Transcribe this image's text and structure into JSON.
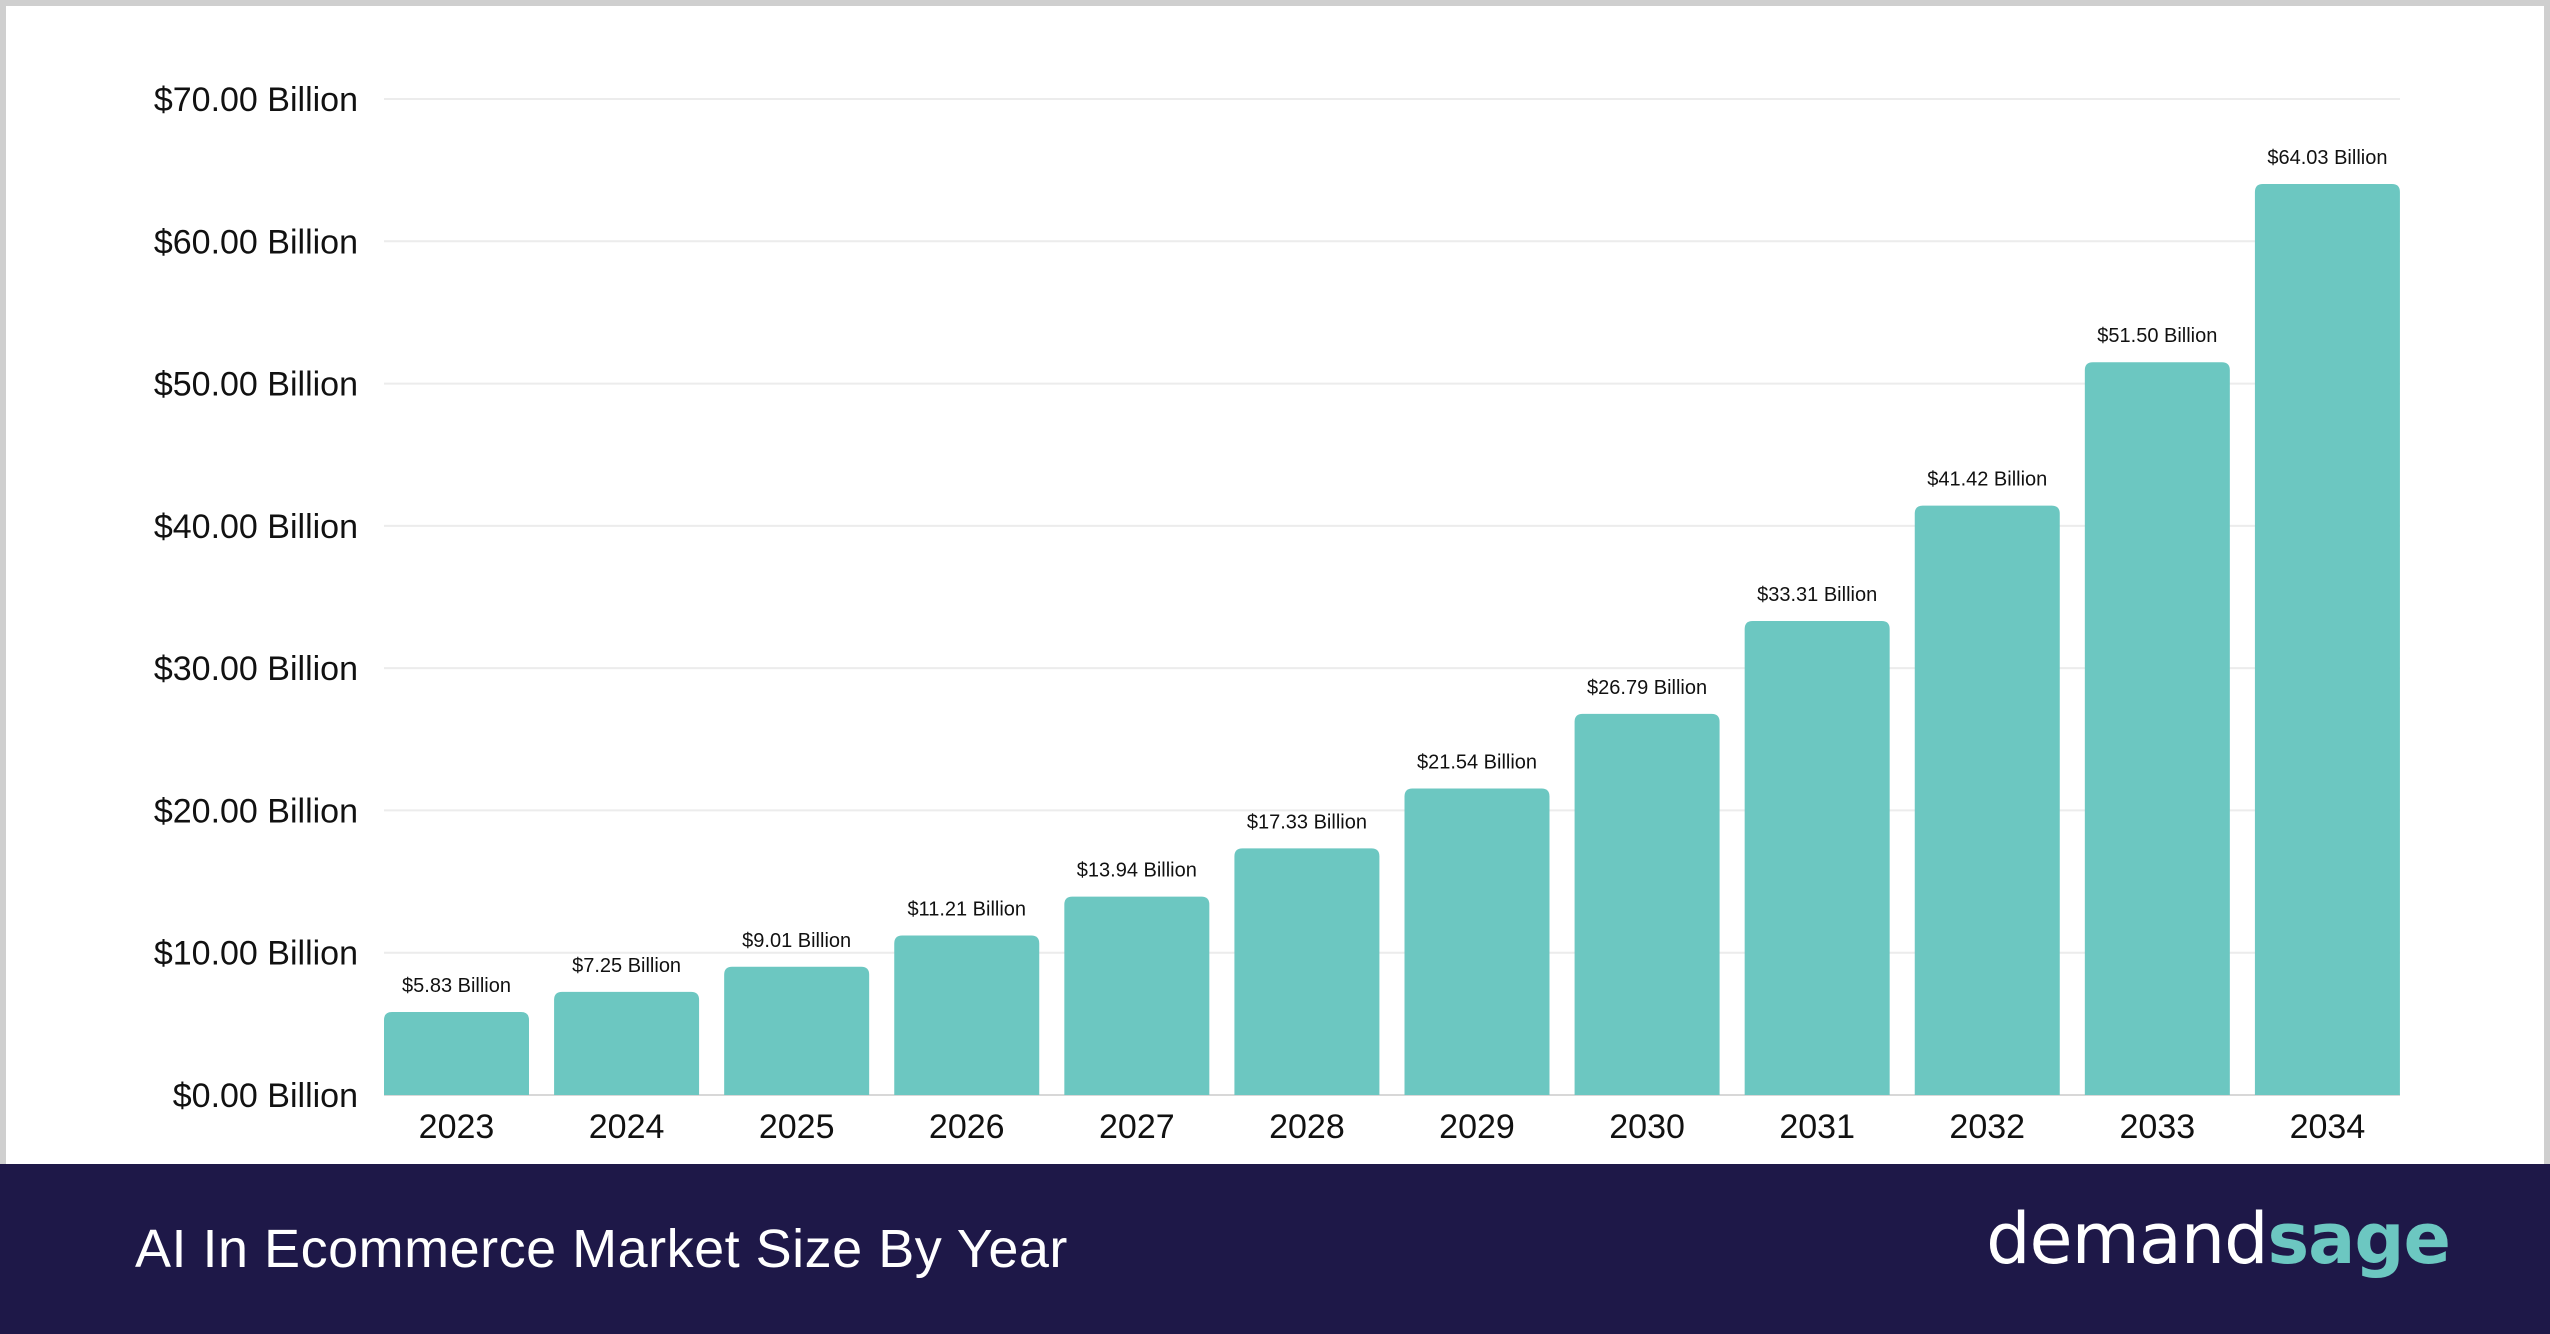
{
  "footer": {
    "title": "AI In Ecommerce Market Size By Year",
    "logo_part1": "demand",
    "logo_part2": "sage"
  },
  "chart_data": {
    "type": "bar",
    "title": "AI In Ecommerce Market Size By Year",
    "categories": [
      "2023",
      "2024",
      "2025",
      "2026",
      "2027",
      "2028",
      "2029",
      "2030",
      "2031",
      "2032",
      "2033",
      "2034"
    ],
    "values": [
      5.83,
      7.25,
      9.01,
      11.21,
      13.94,
      17.33,
      21.54,
      26.79,
      33.31,
      41.42,
      51.5,
      64.03
    ],
    "data_labels": [
      "$5.83 Billion",
      "$7.25 Billion",
      "$9.01 Billion",
      "$11.21 Billion",
      "$13.94 Billion",
      "$17.33 Billion",
      "$21.54 Billion",
      "$26.79 Billion",
      "$33.31 Billion",
      "$41.42 Billion",
      "$51.50 Billion",
      "$64.03 Billion"
    ],
    "yticks": [
      0,
      10,
      20,
      30,
      40,
      50,
      60,
      70
    ],
    "ytick_labels": [
      "$0.00 Billion",
      "$10.00 Billion",
      "$20.00 Billion",
      "$30.00 Billion",
      "$40.00 Billion",
      "$50.00 Billion",
      "$60.00 Billion",
      "$70.00 Billion"
    ],
    "ylim": [
      0,
      70
    ],
    "xlabel": "",
    "ylabel": "",
    "grid": true,
    "bar_color": "#6cc7c1"
  }
}
